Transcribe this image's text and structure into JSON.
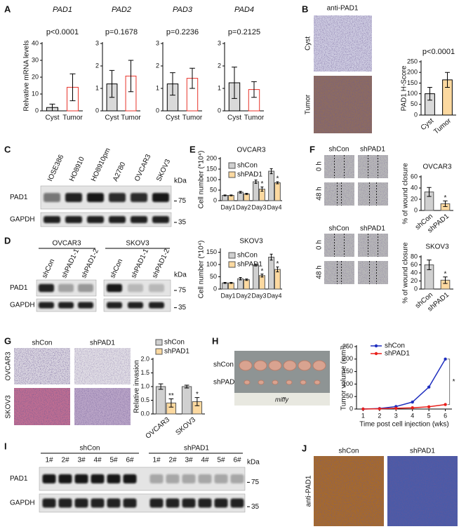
{
  "A": {
    "label": "A",
    "ylabel": "Relvative mRNA levels",
    "charts": [
      {
        "type": "bar",
        "title": "PAD1",
        "annotation": "p<0.0001",
        "categories": [
          "Cyst",
          "Tumor"
        ],
        "values": [
          2,
          14
        ],
        "errors": [
          2,
          8
        ],
        "colors": [
          "#d9d9d9",
          "#ffffff"
        ],
        "edges": [
          "#000000",
          "#e8332a"
        ],
        "ylim": [
          0,
          40
        ],
        "yticks": [
          0,
          10,
          20,
          30,
          40
        ]
      },
      {
        "type": "bar",
        "title": "PAD2",
        "annotation": "p=0.1678",
        "categories": [
          "Cyst",
          "Tumor"
        ],
        "values": [
          1.2,
          1.55
        ],
        "errors": [
          0.6,
          0.7
        ],
        "colors": [
          "#d9d9d9",
          "#ffffff"
        ],
        "edges": [
          "#000000",
          "#e8332a"
        ],
        "ylim": [
          0,
          3
        ],
        "yticks": [
          0,
          1,
          2,
          3
        ]
      },
      {
        "type": "bar",
        "title": "PAD3",
        "annotation": "p=0.2236",
        "categories": [
          "Cyst",
          "Tumor"
        ],
        "values": [
          1.2,
          1.45
        ],
        "errors": [
          0.5,
          0.45
        ],
        "colors": [
          "#d9d9d9",
          "#ffffff"
        ],
        "edges": [
          "#000000",
          "#e8332a"
        ],
        "ylim": [
          0,
          3
        ],
        "yticks": [
          0,
          1,
          2,
          3
        ]
      },
      {
        "type": "bar",
        "title": "PAD4",
        "annotation": "p=0.2125",
        "categories": [
          "Cyst",
          "Tumor"
        ],
        "values": [
          1.25,
          0.95
        ],
        "errors": [
          0.7,
          0.35
        ],
        "colors": [
          "#d9d9d9",
          "#ffffff"
        ],
        "edges": [
          "#000000",
          "#e8332a"
        ],
        "ylim": [
          0,
          3
        ],
        "yticks": [
          0,
          1,
          2,
          3
        ]
      }
    ]
  },
  "B": {
    "label": "B",
    "image_title": "anti-PAD1",
    "rows": [
      "Cyst",
      "Tumor"
    ],
    "chart": {
      "type": "bar",
      "annotation": "p<0.0001",
      "ylabel": "PAD1 H-Score",
      "categories": [
        "Cyst",
        "Tumor"
      ],
      "values": [
        100,
        165
      ],
      "errors": [
        30,
        35
      ],
      "colors": [
        "#d9d9d9",
        "#fcd9a0"
      ],
      "edges": [
        "#000000",
        "#000000"
      ],
      "ylim": [
        0,
        250
      ],
      "yticks": [
        0,
        50,
        100,
        150,
        200,
        250
      ]
    }
  },
  "C": {
    "label": "C",
    "lanes": [
      "IOSE386",
      "HO8910",
      "HO8910pm",
      "A2780",
      "OVCAR3",
      "SKOV3"
    ],
    "unit": "kDa",
    "markers": [
      75,
      35
    ],
    "rows": [
      "PAD1",
      "GAPDH"
    ]
  },
  "D": {
    "label": "D",
    "groups": [
      "OVCAR3",
      "SKOV3"
    ],
    "lanes": [
      "shCon",
      "shPAD1-1",
      "shPAD1-2",
      "shCon",
      "shPAD1-1",
      "shPAD1-2"
    ],
    "unit": "kDa",
    "markers": [
      75,
      35
    ],
    "rows": [
      "PAD1",
      "GAPDH"
    ]
  },
  "E": {
    "label": "E",
    "charts": [
      {
        "type": "bar",
        "title": "OVCAR3",
        "ylabel": "Cell number (*10⁴)",
        "categories": [
          "Day1",
          "Day2",
          "Day3",
          "Day4"
        ],
        "series": [
          {
            "name": "shCon",
            "color": "#d0d0d0",
            "values": [
              25,
              40,
              90,
              140
            ],
            "errors": [
              2,
              4,
              8,
              12
            ]
          },
          {
            "name": "shPAD1",
            "color": "#fcd9a0",
            "values": [
              25,
              32,
              55,
              85
            ],
            "errors": [
              2,
              3,
              10,
              5
            ],
            "markers": [
              null,
              null,
              "*",
              "*"
            ]
          }
        ],
        "ylim": [
          0,
          200
        ],
        "yticks": [
          0,
          50,
          100,
          150,
          200
        ]
      },
      {
        "type": "bar",
        "title": "SKOV3",
        "ylabel": "Cell number (*10⁴)",
        "categories": [
          "Day1",
          "Day2",
          "Day3",
          "Day4"
        ],
        "series": [
          {
            "name": "shCon",
            "color": "#d0d0d0",
            "values": [
              25,
              42,
              98,
              130
            ],
            "errors": [
              2,
              5,
              4,
              12
            ]
          },
          {
            "name": "shPAD1",
            "color": "#fcd9a0",
            "values": [
              25,
              38,
              55,
              80
            ],
            "errors": [
              2,
              3,
              6,
              10
            ],
            "markers": [
              null,
              null,
              "*",
              "*"
            ]
          }
        ],
        "ylim": [
          0,
          160
        ],
        "yticks": [
          0,
          50,
          100,
          150
        ]
      }
    ]
  },
  "F": {
    "label": "F",
    "image_sets": [
      {
        "columns": [
          "shCon",
          "shPAD1"
        ],
        "rows": [
          "0 h",
          "48 h"
        ]
      },
      {
        "columns": [
          "shCon",
          "shPAD1"
        ],
        "rows": [
          "0 h",
          "48 h"
        ]
      }
    ],
    "charts": [
      {
        "type": "bar",
        "title": "OVCAR3",
        "ylabel": "% of wound closure",
        "categories": [
          "shCon",
          "shPAD1"
        ],
        "values": [
          33,
          12
        ],
        "errors": [
          8,
          5
        ],
        "colors": [
          "#d0d0d0",
          "#fcd9a0"
        ],
        "markers": [
          null,
          "*"
        ],
        "ylim": [
          0,
          60
        ],
        "yticks": [
          0,
          20,
          40,
          60
        ]
      },
      {
        "type": "bar",
        "title": "SKOV3",
        "ylabel": "% of wound closure",
        "categories": [
          "shCon",
          "shPAD1"
        ],
        "values": [
          60,
          22
        ],
        "errors": [
          12,
          8
        ],
        "colors": [
          "#d0d0d0",
          "#fcd9a0"
        ],
        "markers": [
          null,
          "*"
        ],
        "ylim": [
          0,
          80
        ],
        "yticks": [
          0,
          20,
          40,
          60,
          80
        ]
      }
    ]
  },
  "G": {
    "label": "G",
    "columns": [
      "shCon",
      "shPAD1"
    ],
    "rows": [
      "OVCAR3",
      "SKOV3"
    ],
    "chart": {
      "type": "bar",
      "ylabel": "Relative invasion",
      "categories": [
        "OVCAR3",
        "SKOV3"
      ],
      "series": [
        {
          "name": "shCon",
          "color": "#d0d0d0",
          "values": [
            1,
            1
          ],
          "errors": [
            0.1,
            0.05
          ]
        },
        {
          "name": "shPAD1",
          "color": "#fcd9a0",
          "values": [
            0.4,
            0.45
          ],
          "errors": [
            0.15,
            0.15
          ],
          "markers": [
            "**",
            "*"
          ]
        }
      ],
      "ylim": [
        0,
        2
      ],
      "yticks": [
        {
          "value": 0,
          "label": "0.0"
        },
        0.5,
        {
          "value": 1,
          "label": "1.0"
        },
        1.5,
        {
          "value": 2,
          "label": "2.0"
        }
      ]
    }
  },
  "H": {
    "label": "H",
    "rows": [
      "shCon",
      "shPAD1"
    ],
    "photo_text": "miffy",
    "chart": {
      "type": "line",
      "ylabel": "Tumor volume (mm³)",
      "xlabel": "Time post cell injection (wks)",
      "annotation": "*",
      "x": [
        1,
        2,
        3,
        4,
        5,
        6
      ],
      "series": [
        {
          "name": "shCon",
          "color": "#1f2fbf",
          "values": [
            0,
            2,
            10,
            28,
            88,
            200
          ]
        },
        {
          "name": "shPAD1",
          "color": "#e8201c",
          "values": [
            0,
            1,
            3,
            5,
            9,
            18
          ]
        }
      ],
      "xlim": [
        0.6,
        6.4
      ],
      "xticks": [
        1,
        2,
        3,
        4,
        5,
        6
      ],
      "ylim": [
        0,
        250
      ],
      "yticks": [
        0,
        50,
        100,
        150,
        200,
        250
      ]
    }
  },
  "I": {
    "label": "I",
    "groups": [
      "shCon",
      "shPAD1"
    ],
    "lanes": [
      "1#",
      "2#",
      "3#",
      "4#",
      "5#",
      "6#",
      "1#",
      "2#",
      "3#",
      "4#",
      "5#",
      "6#"
    ],
    "unit": "kDa",
    "markers": [
      75,
      35
    ],
    "rows": [
      "PAD1",
      "GAPDH"
    ]
  },
  "J": {
    "label": "J",
    "columns": [
      "shCon",
      "shPAD1"
    ],
    "ylabel": "anti-PAD1"
  }
}
